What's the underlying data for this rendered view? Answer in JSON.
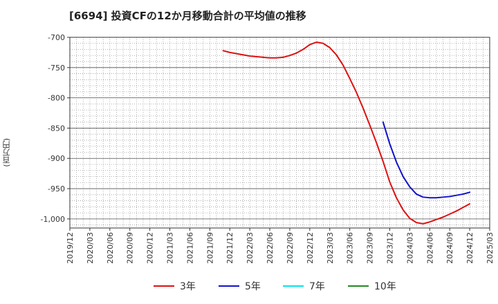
{
  "chart_data": {
    "type": "line",
    "title": "[6694]  投資CFの12か月移動合計の平均値の推移",
    "ylabel": "(百万円)",
    "xlabel": "",
    "ylim": [
      -1015,
      -700
    ],
    "yticks": [
      -700,
      -750,
      -800,
      -850,
      -900,
      -950,
      -1000
    ],
    "ytick_labels": [
      "-700",
      "-750",
      "-800",
      "-850",
      "-900",
      "-950",
      "-1,000"
    ],
    "x_tick_labels": [
      "2019/12",
      "2020/03",
      "2020/06",
      "2020/09",
      "2020/12",
      "2021/03",
      "2021/06",
      "2021/09",
      "2021/12",
      "2022/03",
      "2022/06",
      "2022/09",
      "2022/12",
      "2023/03",
      "2023/06",
      "2023/09",
      "2023/12",
      "2024/03",
      "2024/06",
      "2024/09",
      "2024/12",
      "2025/03"
    ],
    "grid": true,
    "legend_position": "bottom",
    "series": [
      {
        "name": "3年",
        "color": "#dd1111",
        "x": [
          "2021/11",
          "2021/12",
          "2022/01",
          "2022/02",
          "2022/03",
          "2022/04",
          "2022/05",
          "2022/06",
          "2022/07",
          "2022/08",
          "2022/09",
          "2022/10",
          "2022/11",
          "2022/12",
          "2023/01",
          "2023/02",
          "2023/03",
          "2023/04",
          "2023/05",
          "2023/06",
          "2023/07",
          "2023/08",
          "2023/09",
          "2023/10",
          "2023/11",
          "2023/12",
          "2024/01",
          "2024/02",
          "2024/03",
          "2024/04",
          "2024/05",
          "2024/06",
          "2024/07",
          "2024/08",
          "2024/09",
          "2024/10",
          "2024/11",
          "2024/12"
        ],
        "values": [
          -722,
          -725,
          -727,
          -729,
          -731,
          -732,
          -733,
          -734,
          -734,
          -733,
          -730,
          -726,
          -720,
          -712,
          -708,
          -710,
          -717,
          -729,
          -746,
          -768,
          -791,
          -817,
          -845,
          -874,
          -905,
          -939,
          -965,
          -985,
          -999,
          -1006,
          -1008,
          -1005,
          -1001,
          -997,
          -992,
          -987,
          -981,
          -975
        ]
      },
      {
        "name": "5年",
        "color": "#1111cc",
        "x": [
          "2023/11",
          "2023/12",
          "2024/01",
          "2024/02",
          "2024/03",
          "2024/04",
          "2024/05",
          "2024/06",
          "2024/07",
          "2024/08",
          "2024/09",
          "2024/10",
          "2024/11",
          "2024/12"
        ],
        "values": [
          -840,
          -876,
          -906,
          -930,
          -947,
          -959,
          -964,
          -965,
          -965,
          -964,
          -963,
          -961,
          -959,
          -956
        ]
      },
      {
        "name": "7年",
        "color": "#00e5ee",
        "x": [],
        "values": []
      },
      {
        "name": "10年",
        "color": "#228822",
        "x": [],
        "values": []
      }
    ]
  }
}
